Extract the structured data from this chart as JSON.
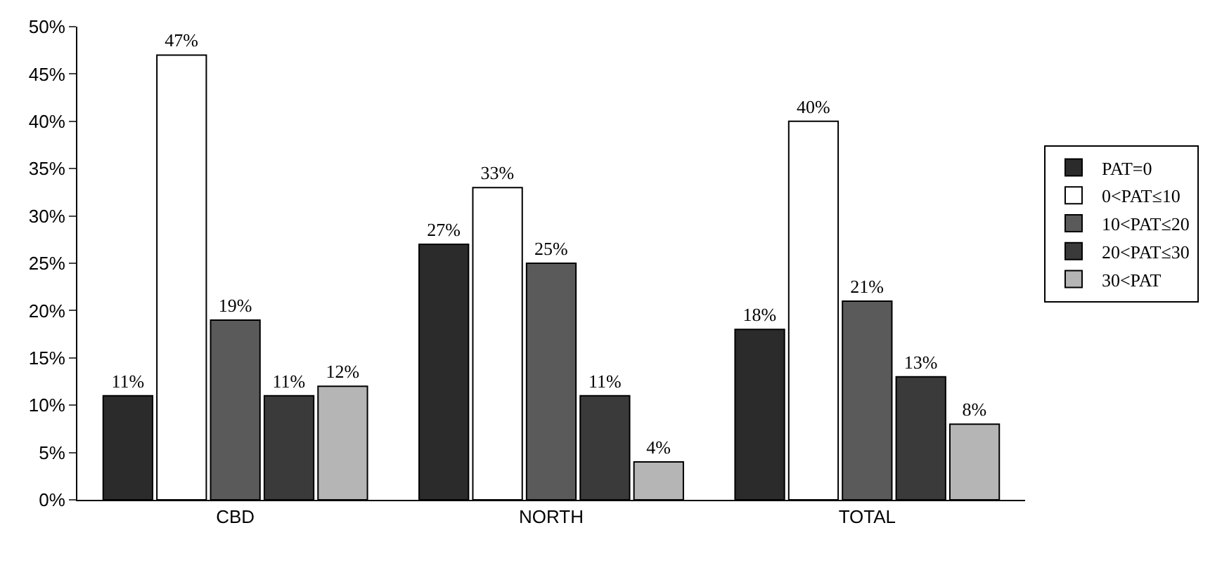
{
  "chart_data": {
    "type": "bar",
    "categories": [
      "CBD",
      "NORTH",
      "TOTAL"
    ],
    "series": [
      {
        "name": "PAT=0",
        "color": "#2b2b2b",
        "values": [
          11,
          27,
          18
        ]
      },
      {
        "name": "0<PAT≤10",
        "color": "#ffffff",
        "values": [
          47,
          33,
          40
        ]
      },
      {
        "name": "10<PAT≤20",
        "color": "#5a5a5a",
        "values": [
          19,
          25,
          21
        ]
      },
      {
        "name": "20<PAT≤30",
        "color": "#3a3a3a",
        "values": [
          11,
          11,
          13
        ]
      },
      {
        "name": "30<PAT",
        "color": "#b5b5b5",
        "values": [
          12,
          4,
          8
        ]
      }
    ],
    "ylim": [
      0,
      50
    ],
    "yticks": [
      {
        "value": 0,
        "label": "0%"
      },
      {
        "value": 5,
        "label": "5%"
      },
      {
        "value": 10,
        "label": "10%"
      },
      {
        "value": 15,
        "label": "15%"
      },
      {
        "value": 20,
        "label": "20%"
      },
      {
        "value": 25,
        "label": "25%"
      },
      {
        "value": 30,
        "label": "30%"
      },
      {
        "value": 35,
        "label": "35%"
      },
      {
        "value": 40,
        "label": "40%"
      },
      {
        "value": 45,
        "label": "45%"
      },
      {
        "value": 50,
        "label": "50%"
      }
    ],
    "value_labels": [
      [
        "11%",
        "27%",
        "18%"
      ],
      [
        "47%",
        "33%",
        "40%"
      ],
      [
        "19%",
        "25%",
        "21%"
      ],
      [
        "11%",
        "11%",
        "13%"
      ],
      [
        "12%",
        "4%",
        "8%"
      ]
    ],
    "legend": "right"
  }
}
